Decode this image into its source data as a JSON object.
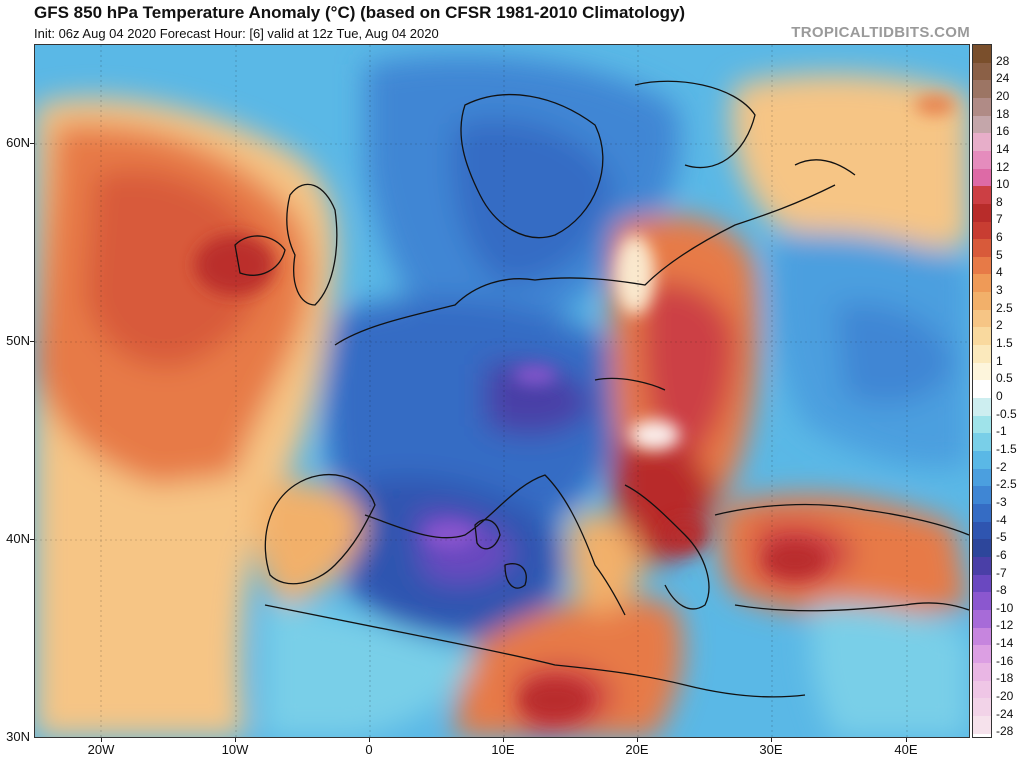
{
  "header": {
    "title": "GFS 850 hPa Temperature Anomaly (°C) (based on CFSR 1981-2010 Climatology)",
    "subtitle": "Init: 06z Aug 04 2020   Forecast Hour: [6]   valid at 12z Tue, Aug 04 2020",
    "brand": "TROPICALTIDBITS.COM"
  },
  "map": {
    "lat_labels": [
      "60N",
      "50N",
      "40N",
      "30N"
    ],
    "lon_labels": [
      "20W",
      "10W",
      "0",
      "10E",
      "20E",
      "30E",
      "40E"
    ]
  },
  "colorbar": {
    "levels": [
      "28",
      "24",
      "20",
      "18",
      "16",
      "14",
      "12",
      "10",
      "8",
      "7",
      "6",
      "5",
      "4",
      "3",
      "2.5",
      "2",
      "1.5",
      "1",
      "0.5",
      "0",
      "-0.5",
      "-1",
      "-1.5",
      "-2",
      "-2.5",
      "-3",
      "-4",
      "-5",
      "-6",
      "-7",
      "-8",
      "-10",
      "-12",
      "-14",
      "-16",
      "-18",
      "-20",
      "-24",
      "-28"
    ],
    "colors": [
      "#7a4f2c",
      "#8b6046",
      "#9c7564",
      "#b08b86",
      "#c4a6aa",
      "#e7aec9",
      "#e58cbd",
      "#dd6aa6",
      "#cc3f44",
      "#b82c2a",
      "#c83d32",
      "#d85a3a",
      "#e77a47",
      "#ef9a57",
      "#f2b06a",
      "#f6c585",
      "#f9d99e",
      "#fbe9bc",
      "#fdf5dc",
      "#ffffff",
      "#cdeef0",
      "#9fe3ea",
      "#79cfe8",
      "#5ab8e6",
      "#4b9fdf",
      "#3f86d4",
      "#356cc4",
      "#2f55b0",
      "#2d469b",
      "#4a3fa7",
      "#6a48c0",
      "#8b57cf",
      "#a76bd8",
      "#c685de",
      "#dc9fe3",
      "#e9b6e4",
      "#efc6e6",
      "#f2d3e8",
      "#f6e2ec"
    ]
  }
}
